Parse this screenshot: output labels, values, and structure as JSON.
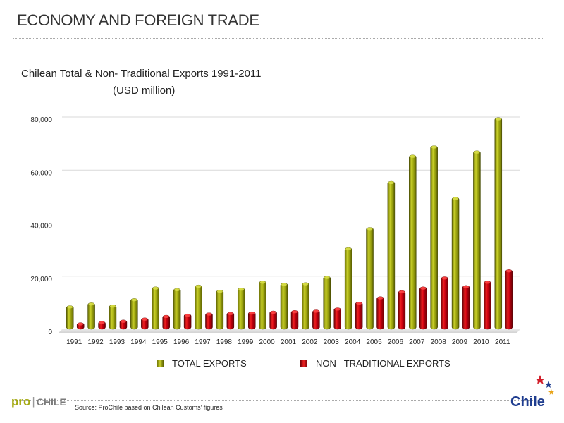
{
  "header": {
    "title": "ECONOMY AND FOREIGN TRADE"
  },
  "chart_data": {
    "type": "bar",
    "title": "Chilean Total & Non- Traditional Exports 1991-2011",
    "subtitle": "(USD million)",
    "xlabel": "",
    "ylabel": "",
    "ylim": [
      0,
      80000
    ],
    "yticks": [
      "0",
      "20,000",
      "40,000",
      "60,000",
      "80,000"
    ],
    "ytick_values": [
      0,
      20000,
      40000,
      60000,
      80000
    ],
    "grid": true,
    "categories": [
      "1991",
      "1992",
      "1993",
      "1994",
      "1995",
      "1996",
      "1997",
      "1998",
      "1999",
      "2000",
      "2001",
      "2002",
      "2003",
      "2004",
      "2005",
      "2006",
      "2007",
      "2008",
      "2009",
      "2010",
      "2011"
    ],
    "series": [
      {
        "name": "TOTAL EXPORTS",
        "color": "#9ea60a",
        "values": [
          8900,
          10000,
          9200,
          11600,
          16000,
          15400,
          16700,
          14800,
          15600,
          18200,
          17400,
          17600,
          20000,
          30800,
          38400,
          55800,
          65700,
          69200,
          49800,
          67300,
          79800
        ]
      },
      {
        "name": "NON –TRADITIONAL EXPORTS",
        "color": "#c4000e",
        "values": [
          2500,
          3000,
          3500,
          4300,
          5300,
          5800,
          6200,
          6400,
          6600,
          6900,
          7100,
          7300,
          8100,
          10300,
          12300,
          14600,
          16000,
          19800,
          16500,
          18200,
          22500
        ]
      }
    ]
  },
  "legend": {
    "total_label": "TOTAL EXPORTS",
    "nontrad_label": "NON –TRADITIONAL EXPORTS"
  },
  "footer": {
    "source": "Source: ProChile based on Chilean Customs’ figures",
    "logo_pro": "pro",
    "logo_sep": "|",
    "logo_chile": "CHILE",
    "brand_logo": "Chile"
  }
}
